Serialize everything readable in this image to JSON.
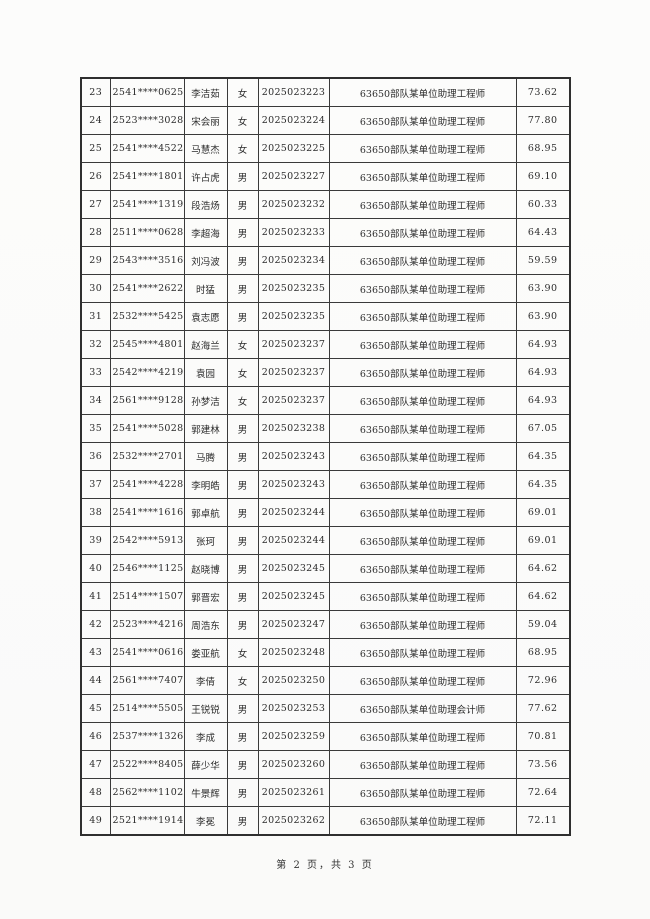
{
  "page": {
    "background_color": "#fbfbfa",
    "border_color": "#3a3a3a",
    "text_color": "#2b2b2b"
  },
  "footer": {
    "page_info": "第 2 页，共 3 页"
  },
  "table": {
    "rows": [
      {
        "row_number": "23",
        "id_number": "2541****0625",
        "name": "李洁茹",
        "gender": "女",
        "exam_number": "2025023223",
        "position": "63650部队某单位助理工程师",
        "score": "73.62"
      },
      {
        "row_number": "24",
        "id_number": "2523****3028",
        "name": "宋会丽",
        "gender": "女",
        "exam_number": "2025023224",
        "position": "63650部队某单位助理工程师",
        "score": "77.80"
      },
      {
        "row_number": "25",
        "id_number": "2541****4522",
        "name": "马慧杰",
        "gender": "女",
        "exam_number": "2025023225",
        "position": "63650部队某单位助理工程师",
        "score": "68.95"
      },
      {
        "row_number": "26",
        "id_number": "2541****1801",
        "name": "许占虎",
        "gender": "男",
        "exam_number": "2025023227",
        "position": "63650部队某单位助理工程师",
        "score": "69.10"
      },
      {
        "row_number": "27",
        "id_number": "2541****1319",
        "name": "段浩炀",
        "gender": "男",
        "exam_number": "2025023232",
        "position": "63650部队某单位助理工程师",
        "score": "60.33"
      },
      {
        "row_number": "28",
        "id_number": "2511****0628",
        "name": "李超海",
        "gender": "男",
        "exam_number": "2025023233",
        "position": "63650部队某单位助理工程师",
        "score": "64.43"
      },
      {
        "row_number": "29",
        "id_number": "2543****3516",
        "name": "刘冯波",
        "gender": "男",
        "exam_number": "2025023234",
        "position": "63650部队某单位助理工程师",
        "score": "59.59"
      },
      {
        "row_number": "30",
        "id_number": "2541****2622",
        "name": "时猛",
        "gender": "男",
        "exam_number": "2025023235",
        "position": "63650部队某单位助理工程师",
        "score": "63.90"
      },
      {
        "row_number": "31",
        "id_number": "2532****5425",
        "name": "袁志愿",
        "gender": "男",
        "exam_number": "2025023235",
        "position": "63650部队某单位助理工程师",
        "score": "63.90"
      },
      {
        "row_number": "32",
        "id_number": "2545****4801",
        "name": "赵海兰",
        "gender": "女",
        "exam_number": "2025023237",
        "position": "63650部队某单位助理工程师",
        "score": "64.93"
      },
      {
        "row_number": "33",
        "id_number": "2542****4219",
        "name": "袁园",
        "gender": "女",
        "exam_number": "2025023237",
        "position": "63650部队某单位助理工程师",
        "score": "64.93"
      },
      {
        "row_number": "34",
        "id_number": "2561****9128",
        "name": "孙梦洁",
        "gender": "女",
        "exam_number": "2025023237",
        "position": "63650部队某单位助理工程师",
        "score": "64.93"
      },
      {
        "row_number": "35",
        "id_number": "2541****5028",
        "name": "郭建林",
        "gender": "男",
        "exam_number": "2025023238",
        "position": "63650部队某单位助理工程师",
        "score": "67.05"
      },
      {
        "row_number": "36",
        "id_number": "2532****2701",
        "name": "马腾",
        "gender": "男",
        "exam_number": "2025023243",
        "position": "63650部队某单位助理工程师",
        "score": "64.35"
      },
      {
        "row_number": "37",
        "id_number": "2541****4228",
        "name": "李明皓",
        "gender": "男",
        "exam_number": "2025023243",
        "position": "63650部队某单位助理工程师",
        "score": "64.35"
      },
      {
        "row_number": "38",
        "id_number": "2541****1616",
        "name": "郭卓航",
        "gender": "男",
        "exam_number": "2025023244",
        "position": "63650部队某单位助理工程师",
        "score": "69.01"
      },
      {
        "row_number": "39",
        "id_number": "2542****5913",
        "name": "张珂",
        "gender": "男",
        "exam_number": "2025023244",
        "position": "63650部队某单位助理工程师",
        "score": "69.01"
      },
      {
        "row_number": "40",
        "id_number": "2546****1125",
        "name": "赵晓博",
        "gender": "男",
        "exam_number": "2025023245",
        "position": "63650部队某单位助理工程师",
        "score": "64.62"
      },
      {
        "row_number": "41",
        "id_number": "2514****1507",
        "name": "郭晋宏",
        "gender": "男",
        "exam_number": "2025023245",
        "position": "63650部队某单位助理工程师",
        "score": "64.62"
      },
      {
        "row_number": "42",
        "id_number": "2523****4216",
        "name": "周浩东",
        "gender": "男",
        "exam_number": "2025023247",
        "position": "63650部队某单位助理工程师",
        "score": "59.04"
      },
      {
        "row_number": "43",
        "id_number": "2541****0616",
        "name": "娄亚航",
        "gender": "女",
        "exam_number": "2025023248",
        "position": "63650部队某单位助理工程师",
        "score": "68.95"
      },
      {
        "row_number": "44",
        "id_number": "2561****7407",
        "name": "李倩",
        "gender": "女",
        "exam_number": "2025023250",
        "position": "63650部队某单位助理工程师",
        "score": "72.96"
      },
      {
        "row_number": "45",
        "id_number": "2514****5505",
        "name": "王锐锐",
        "gender": "男",
        "exam_number": "2025023253",
        "position": "63650部队某单位助理会计师",
        "score": "77.62"
      },
      {
        "row_number": "46",
        "id_number": "2537****1326",
        "name": "李成",
        "gender": "男",
        "exam_number": "2025023259",
        "position": "63650部队某单位助理工程师",
        "score": "70.81"
      },
      {
        "row_number": "47",
        "id_number": "2522****8405",
        "name": "薛少华",
        "gender": "男",
        "exam_number": "2025023260",
        "position": "63650部队某单位助理工程师",
        "score": "73.56"
      },
      {
        "row_number": "48",
        "id_number": "2562****1102",
        "name": "牛景辉",
        "gender": "男",
        "exam_number": "2025023261",
        "position": "63650部队某单位助理工程师",
        "score": "72.64"
      },
      {
        "row_number": "49",
        "id_number": "2521****1914",
        "name": "李冕",
        "gender": "男",
        "exam_number": "2025023262",
        "position": "63650部队某单位助理工程师",
        "score": "72.11"
      }
    ]
  }
}
